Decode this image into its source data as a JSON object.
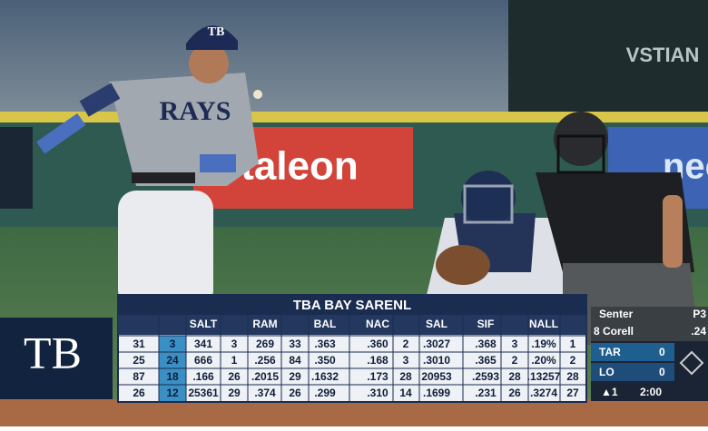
{
  "scene": {
    "signs": [
      "taleon",
      "VSTIAN",
      "neo"
    ],
    "helmet": "TB",
    "jersey": "RAYS"
  },
  "logo": "TB",
  "table": {
    "title": "TBA BAY SARENL",
    "headers": [
      "SALT",
      "RAM",
      "BAL",
      "NAC",
      "SAL",
      "SIF",
      "NALL"
    ],
    "rows": [
      [
        "31",
        "3",
        "341",
        "3",
        "269",
        "33",
        ".363",
        ".360",
        "2",
        ".3027",
        ".368",
        "3",
        ".19%",
        "1"
      ],
      [
        "25",
        "24",
        "666",
        "1",
        ".256",
        "84",
        ".350",
        ".168",
        "3",
        ".3010",
        ".365",
        "2",
        ".20%",
        "2"
      ],
      [
        "87",
        "18",
        ".166",
        "26",
        ".2015",
        "29",
        ".1632",
        ".173",
        "28",
        "20953",
        ".2593",
        "28",
        ".13257",
        "28"
      ],
      [
        "26",
        "12",
        "25361",
        "29",
        ".374",
        "26",
        ".299",
        ".310",
        "14",
        ".1699",
        ".231",
        "26",
        ".3274",
        "27"
      ]
    ]
  },
  "scoreboard": {
    "pitcher": "Senter",
    "pitch_count": "P3",
    "batter": "8 Corell",
    "avg": ".24",
    "teams": [
      {
        "name": "TAR",
        "score": "0"
      },
      {
        "name": "LO",
        "score": "0"
      }
    ],
    "inning": "▲1",
    "clock": "2:00"
  }
}
